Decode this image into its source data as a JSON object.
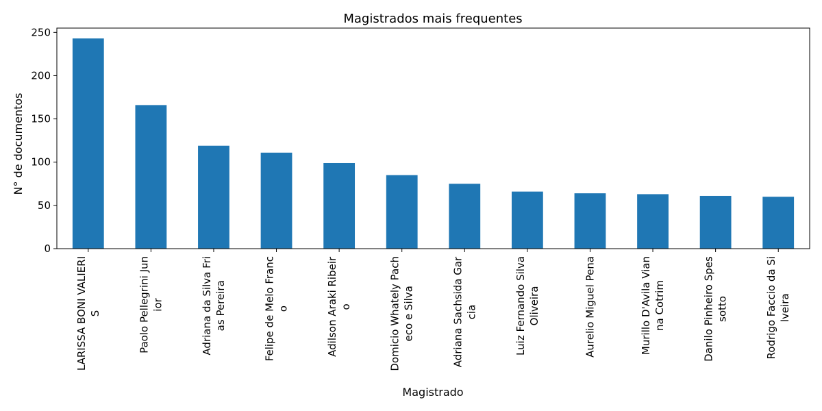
{
  "chart_data": {
    "type": "bar",
    "title": "Magistrados mais frequentes",
    "xlabel": "Magistrado",
    "ylabel": "N° de documentos",
    "ylim": [
      0,
      255
    ],
    "yticks": [
      0,
      50,
      100,
      150,
      200,
      250
    ],
    "grid": false,
    "bar_color": "#1f77b4",
    "categories": [
      [
        "LARISSA BONI VALIERI",
        "S"
      ],
      [
        "Paolo Pellegrini Jun",
        "ior"
      ],
      [
        "Adriana da Silva Fri",
        "as Pereira"
      ],
      [
        "Felipe de Melo Franc",
        "o"
      ],
      [
        "Adilson Araki Ribeir",
        "o"
      ],
      [
        "Domicio Whately Pach",
        "eco e Silva"
      ],
      [
        "Adriana Sachsida Gar",
        "cia"
      ],
      [
        "Luiz Fernando Silva",
        "Oliveira"
      ],
      [
        "Aurelio Miguel Pena"
      ],
      [
        "Murillo D'Avila Vian",
        "na Cotrim"
      ],
      [
        "Danilo Pinheiro Spes",
        "sotto"
      ],
      [
        "Rodrigo Faccio da Si",
        "lveira"
      ]
    ],
    "values": [
      243,
      166,
      119,
      111,
      99,
      85,
      75,
      66,
      64,
      63,
      61,
      60
    ]
  }
}
